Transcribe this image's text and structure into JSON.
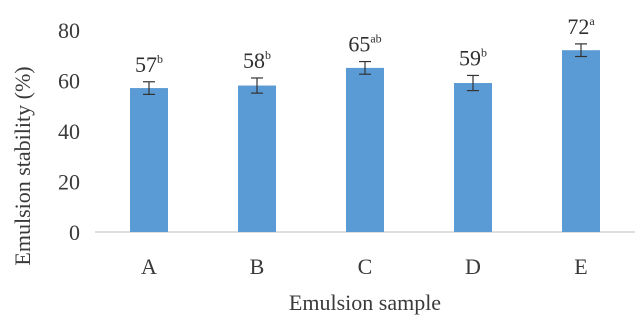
{
  "chart_data": {
    "type": "bar",
    "title": "",
    "xlabel": "Emulsion sample",
    "ylabel": "Emulsion stability (%)",
    "categories": [
      "A",
      "B",
      "C",
      "D",
      "E"
    ],
    "values": [
      57,
      58,
      65,
      59,
      72
    ],
    "errors": [
      2.5,
      3,
      2.5,
      3,
      2.5
    ],
    "labels": [
      {
        "value": "57",
        "sup": "b"
      },
      {
        "value": "58",
        "sup": "b"
      },
      {
        "value": "65",
        "sup": "ab"
      },
      {
        "value": "59",
        "sup": "b"
      },
      {
        "value": "72",
        "sup": "a"
      }
    ],
    "ylim": [
      0,
      80
    ],
    "yticks": [
      "0",
      "20",
      "40",
      "60",
      "80"
    ],
    "grid": false,
    "legend": "none",
    "bar_color": "#5b9bd5",
    "error_color": "#333333"
  }
}
